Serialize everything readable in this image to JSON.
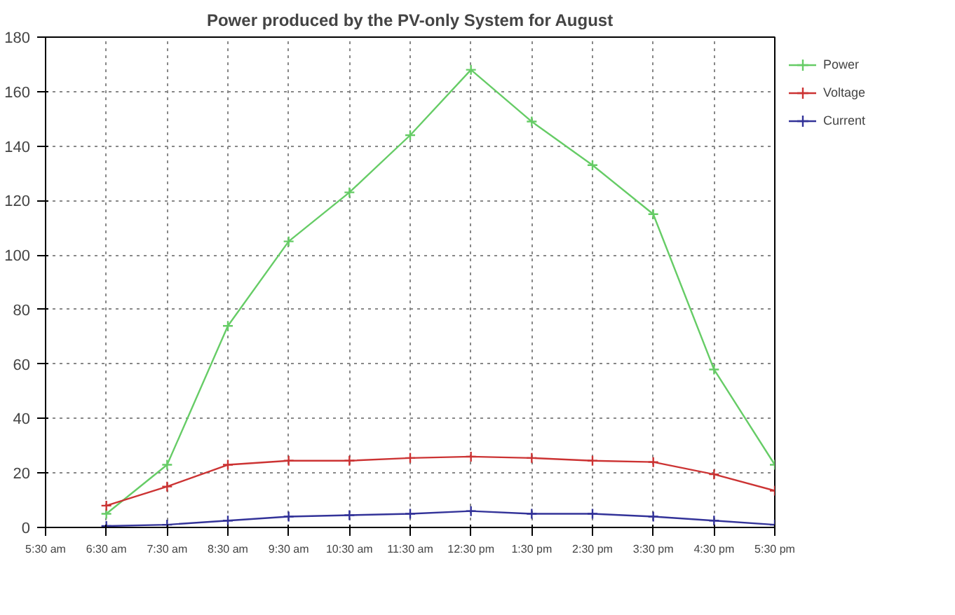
{
  "chart_data": {
    "type": "line",
    "title": "Power produced by the PV-only System for August",
    "x": [
      6.5,
      7.5,
      8.5,
      9.5,
      10.5,
      11.5,
      12.5,
      13.5,
      14.5,
      15.5,
      16.5,
      17.5
    ],
    "xlim": [
      5.5,
      17.5
    ],
    "xticks": [
      {
        "value": 5.5,
        "label": "5:30 am"
      },
      {
        "value": 6.5,
        "label": "6:30 am"
      },
      {
        "value": 7.5,
        "label": "7:30 am"
      },
      {
        "value": 8.5,
        "label": "8:30 am"
      },
      {
        "value": 9.5,
        "label": "9:30 am"
      },
      {
        "value": 10.5,
        "label": "10:30 am"
      },
      {
        "value": 11.5,
        "label": "11:30 am"
      },
      {
        "value": 12.5,
        "label": "12:30 pm"
      },
      {
        "value": 13.5,
        "label": "1:30 pm"
      },
      {
        "value": 14.5,
        "label": "2:30 pm"
      },
      {
        "value": 15.5,
        "label": "3:30 pm"
      },
      {
        "value": 16.5,
        "label": "4:30 pm"
      },
      {
        "value": 17.5,
        "label": "5:30 pm"
      }
    ],
    "ylim": [
      0,
      180
    ],
    "yticks": [
      0,
      20,
      40,
      60,
      80,
      100,
      120,
      140,
      160,
      180
    ],
    "grid": true,
    "legend": "top right",
    "marker": "cross",
    "line_style": "solid",
    "series": [
      {
        "name": "Power",
        "color": "#66cc66",
        "values": [
          5,
          23,
          74,
          105,
          123,
          144,
          168,
          149,
          133,
          115,
          58,
          23
        ]
      },
      {
        "name": "Voltage",
        "color": "#cc3333",
        "values": [
          8,
          15,
          23,
          24.5,
          24.5,
          25.5,
          26,
          25.5,
          24.5,
          24,
          19.5,
          13.5
        ]
      },
      {
        "name": "Current",
        "color": "#333399",
        "values": [
          0.5,
          1,
          2.5,
          4,
          4.5,
          5,
          6,
          5,
          5,
          4,
          2.5,
          1
        ]
      }
    ]
  }
}
